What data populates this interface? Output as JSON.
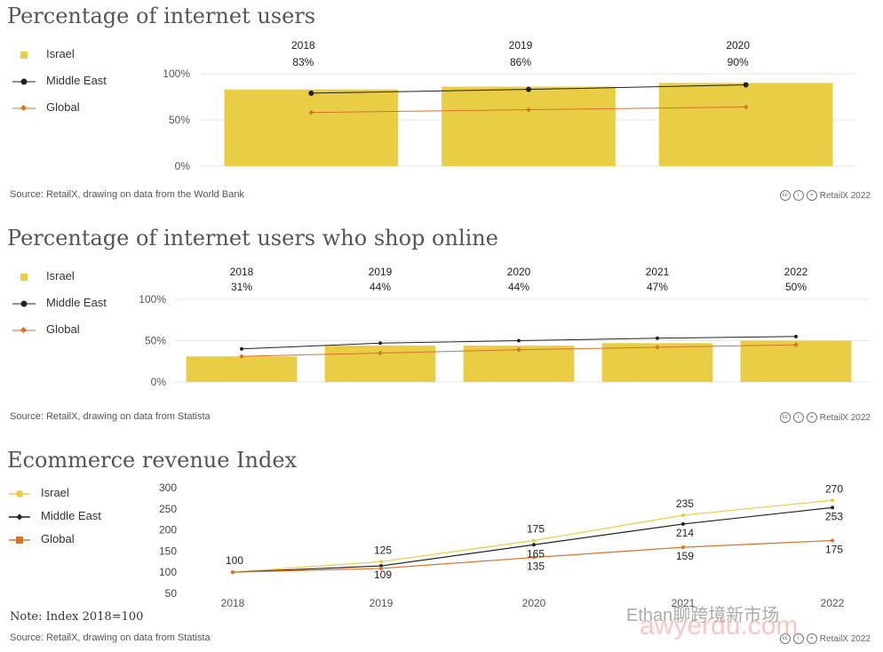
{
  "panel1": {
    "title": "Percentage of internet users",
    "legend": [
      "Israel",
      "Middle East",
      "Global"
    ],
    "source": "Source: RetailX, drawing on data from the World Bank",
    "brand": "RetailX 2022"
  },
  "panel2": {
    "title": "Percentage of internet users who shop online",
    "legend": [
      "Israel",
      "Middle East",
      "Global"
    ],
    "source": "Source: RetailX, drawing on data from Statista",
    "brand": "RetailX 2022"
  },
  "panel3": {
    "title": "Ecommerce revenue Index",
    "legend": [
      "Israel",
      "Middle East",
      "Global"
    ],
    "note": "Note: Index 2018=100",
    "source": "Source: RetailX, drawing on data from Statista",
    "brand": "RetailX 2022"
  },
  "watermark": {
    "line1": "Ethan聊跨境新市场",
    "line2": "awyerdu.com"
  },
  "colors": {
    "israel": "#e8cd45",
    "middle_east": "#222222",
    "global": "#d9722a",
    "grid": "#e6e6e6"
  },
  "chart_data": [
    {
      "type": "bar",
      "title": "Percentage of internet users",
      "categories": [
        "2018",
        "2019",
        "2020"
      ],
      "bar_labels": [
        "83%",
        "86%",
        "90%"
      ],
      "series": [
        {
          "name": "Israel",
          "type": "bar",
          "values": [
            83,
            86,
            90
          ]
        },
        {
          "name": "Middle East",
          "type": "line",
          "values": [
            79,
            83,
            88
          ]
        },
        {
          "name": "Global",
          "type": "line",
          "values": [
            58,
            61,
            64
          ]
        }
      ],
      "yticks": [
        "0%",
        "50%",
        "100%"
      ],
      "ylim": [
        0,
        100
      ]
    },
    {
      "type": "bar",
      "title": "Percentage of internet users who shop online",
      "categories": [
        "2018",
        "2019",
        "2020",
        "2021",
        "2022"
      ],
      "bar_labels": [
        "31%",
        "44%",
        "44%",
        "47%",
        "50%"
      ],
      "series": [
        {
          "name": "Israel",
          "type": "bar",
          "values": [
            31,
            44,
            44,
            47,
            50
          ]
        },
        {
          "name": "Middle East",
          "type": "line",
          "values": [
            40,
            47,
            50,
            53,
            55
          ]
        },
        {
          "name": "Global",
          "type": "line",
          "values": [
            31,
            35,
            39,
            42,
            45
          ]
        }
      ],
      "yticks": [
        "0%",
        "50%",
        "100%"
      ],
      "ylim": [
        0,
        100
      ]
    },
    {
      "type": "line",
      "title": "Ecommerce revenue Index",
      "categories": [
        "2018",
        "2019",
        "2020",
        "2021",
        "2022"
      ],
      "series": [
        {
          "name": "Israel",
          "values": [
            100,
            125,
            175,
            235,
            270
          ]
        },
        {
          "name": "Middle East",
          "values": [
            100,
            115,
            165,
            214,
            253
          ]
        },
        {
          "name": "Global",
          "values": [
            100,
            109,
            135,
            159,
            175
          ]
        }
      ],
      "labels_above": [
        "100",
        "125",
        "175",
        "235",
        "270"
      ],
      "labels_below": [
        "",
        "109",
        "165",
        "214",
        "253"
      ],
      "labels_bottom": [
        "",
        "",
        "135",
        "159",
        "175"
      ],
      "yticks": [
        "50",
        "100",
        "150",
        "200",
        "250",
        "300"
      ],
      "ylim": [
        50,
        300
      ]
    }
  ]
}
